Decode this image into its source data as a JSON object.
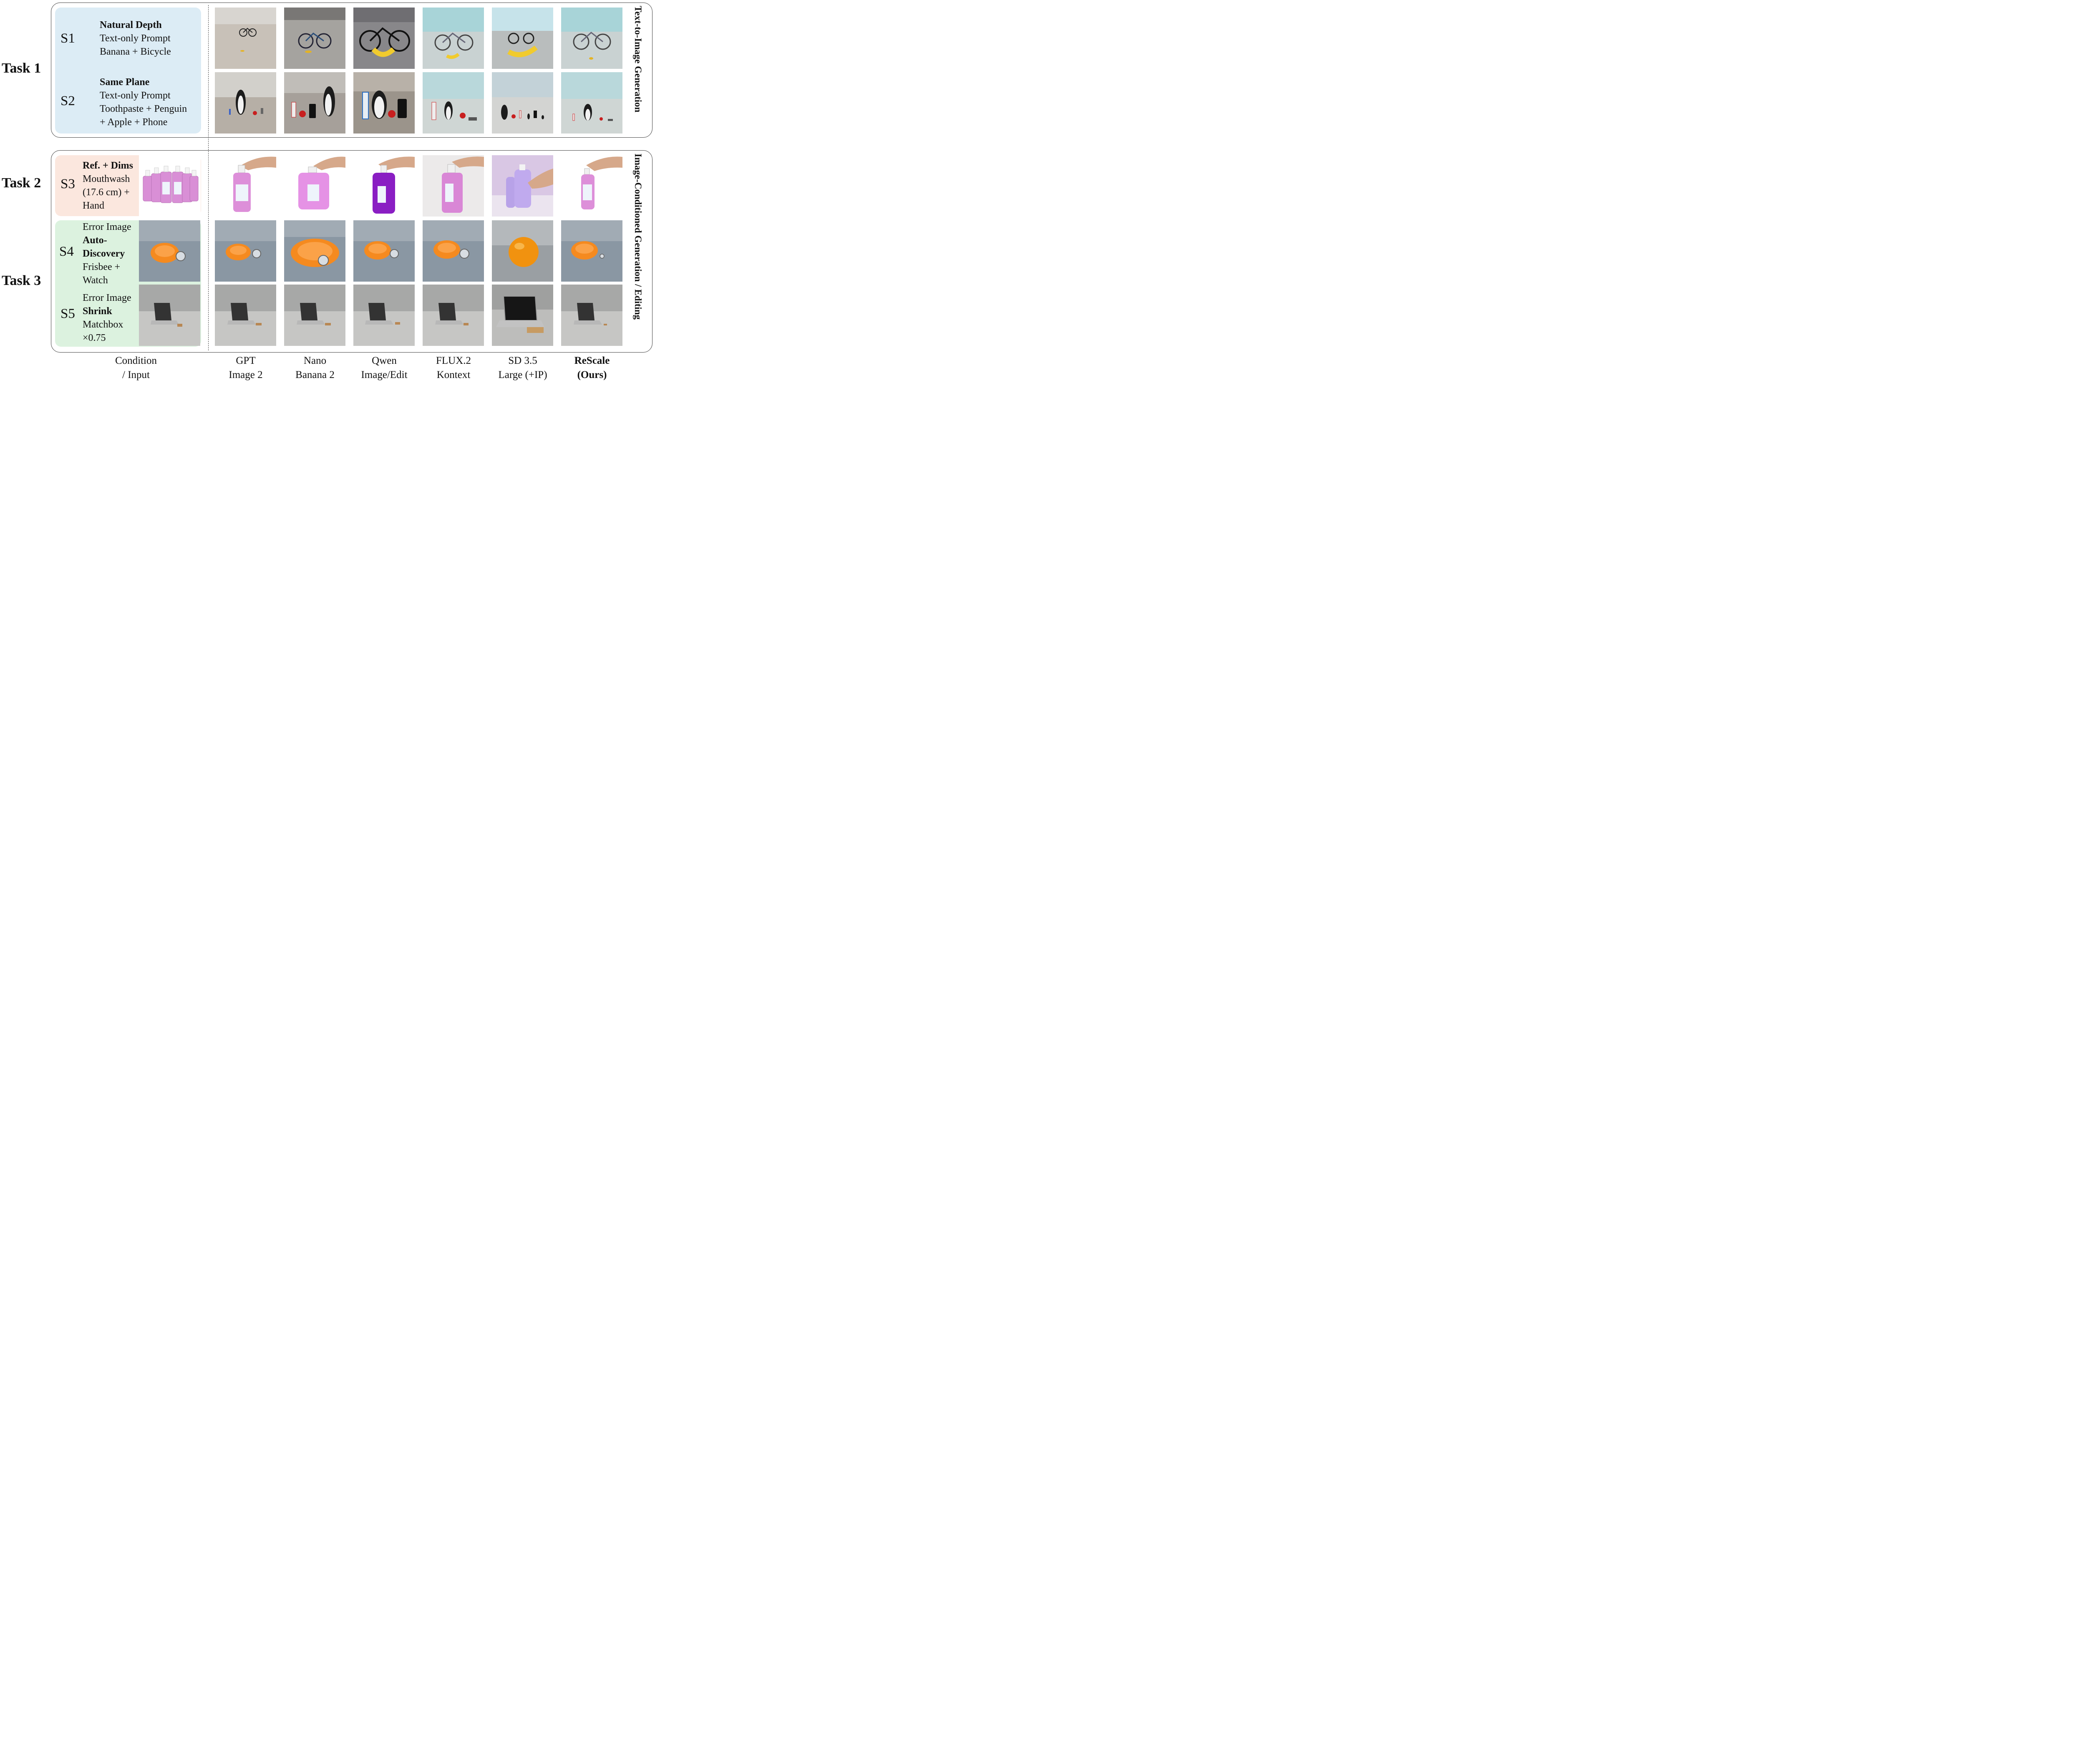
{
  "tasks": {
    "task1": "Task 1",
    "task2": "Task 2",
    "task3": "Task 3"
  },
  "section_titles": {
    "t2i": "Text-to-Image Generation",
    "icg": "Image-Conditioned Generation / Editing"
  },
  "scenarios": [
    {
      "id": "S1",
      "lines": [
        {
          "text": "Natural Depth",
          "bold": true
        },
        {
          "text": "Text-only Prompt",
          "bold": false
        },
        {
          "text": "Banana + Bicycle",
          "bold": false
        }
      ]
    },
    {
      "id": "S2",
      "lines": [
        {
          "text": "Same Plane",
          "bold": true
        },
        {
          "text": "Text-only Prompt",
          "bold": false
        },
        {
          "text": "Toothpaste + Penguin",
          "bold": false
        },
        {
          "text": "+ Apple + Phone",
          "bold": false
        }
      ]
    },
    {
      "id": "S3",
      "lines": [
        {
          "text": "Ref. + Dims",
          "bold": true
        },
        {
          "text": "Mouthwash",
          "bold": false
        },
        {
          "text": "(17.6 cm) +",
          "bold": false
        },
        {
          "text": "Hand",
          "bold": false
        }
      ]
    },
    {
      "id": "S4",
      "lines": [
        {
          "text": "Error Image",
          "bold": false
        },
        {
          "text": "Auto-",
          "bold": true
        },
        {
          "text": "Discovery",
          "bold": true
        },
        {
          "text": "Frisbee +",
          "bold": false
        },
        {
          "text": "Watch",
          "bold": false
        }
      ]
    },
    {
      "id": "S5",
      "lines": [
        {
          "text": "Error Image",
          "bold": false
        },
        {
          "text": "Shrink",
          "bold": true
        },
        {
          "text": "Matchbox",
          "bold": false
        },
        {
          "text": "×0.75",
          "bold": false
        }
      ]
    }
  ],
  "columns": [
    {
      "line1": "Condition",
      "line2": "/ Input",
      "bold": false
    },
    {
      "line1": "GPT",
      "line2": "Image 2",
      "bold": false
    },
    {
      "line1": "Nano",
      "line2": "Banana 2",
      "bold": false
    },
    {
      "line1": "Qwen",
      "line2": "Image/Edit",
      "bold": false
    },
    {
      "line1": "FLUX.2",
      "line2": "Kontext",
      "bold": false
    },
    {
      "line1": "SD 3.5",
      "line2": "Large (+IP)",
      "bold": false
    },
    {
      "line1": "ReScale",
      "line2": "(Ours)",
      "bold": true
    }
  ],
  "colors": {
    "t2i_box": "#dcecf5",
    "s3_box": "#fbe7de",
    "s4s5_box": "#dcf2df",
    "border": "#444444"
  }
}
